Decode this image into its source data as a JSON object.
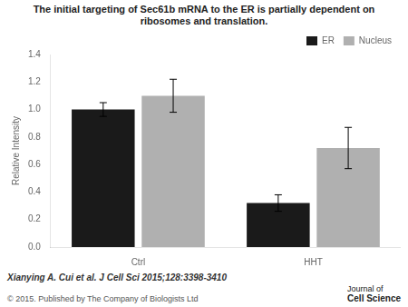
{
  "chart_data": {
    "type": "bar",
    "title": "The initial targeting of Sec61b mRNA to the ER is partially dependent on ribosomes and translation.",
    "ylabel": "Relative Intensity",
    "categories": [
      "Ctrl",
      "HHT"
    ],
    "series": [
      {
        "name": "ER",
        "color": "#1a1a1a",
        "values": [
          1.0,
          0.32
        ],
        "errors": [
          0.05,
          0.06
        ]
      },
      {
        "name": "Nucleus",
        "color": "#b0b0b0",
        "values": [
          1.1,
          0.72
        ],
        "errors": [
          0.12,
          0.15
        ]
      }
    ],
    "ylim": [
      0.0,
      1.4
    ],
    "yticks": [
      {
        "value": 0.0,
        "label": "0.0"
      },
      0.2,
      0.4,
      0.6,
      0.8,
      {
        "value": 1.0,
        "label": "1.0"
      },
      1.2,
      1.4
    ],
    "grid": false,
    "legend": "upper right",
    "annotations": [
      "Xianying A. Cui et al. J Cell Sci 2015;128:3398-3410",
      "© 2015. Published by The Company of Biologists Ltd",
      "Journal of",
      "Cell Science"
    ]
  }
}
